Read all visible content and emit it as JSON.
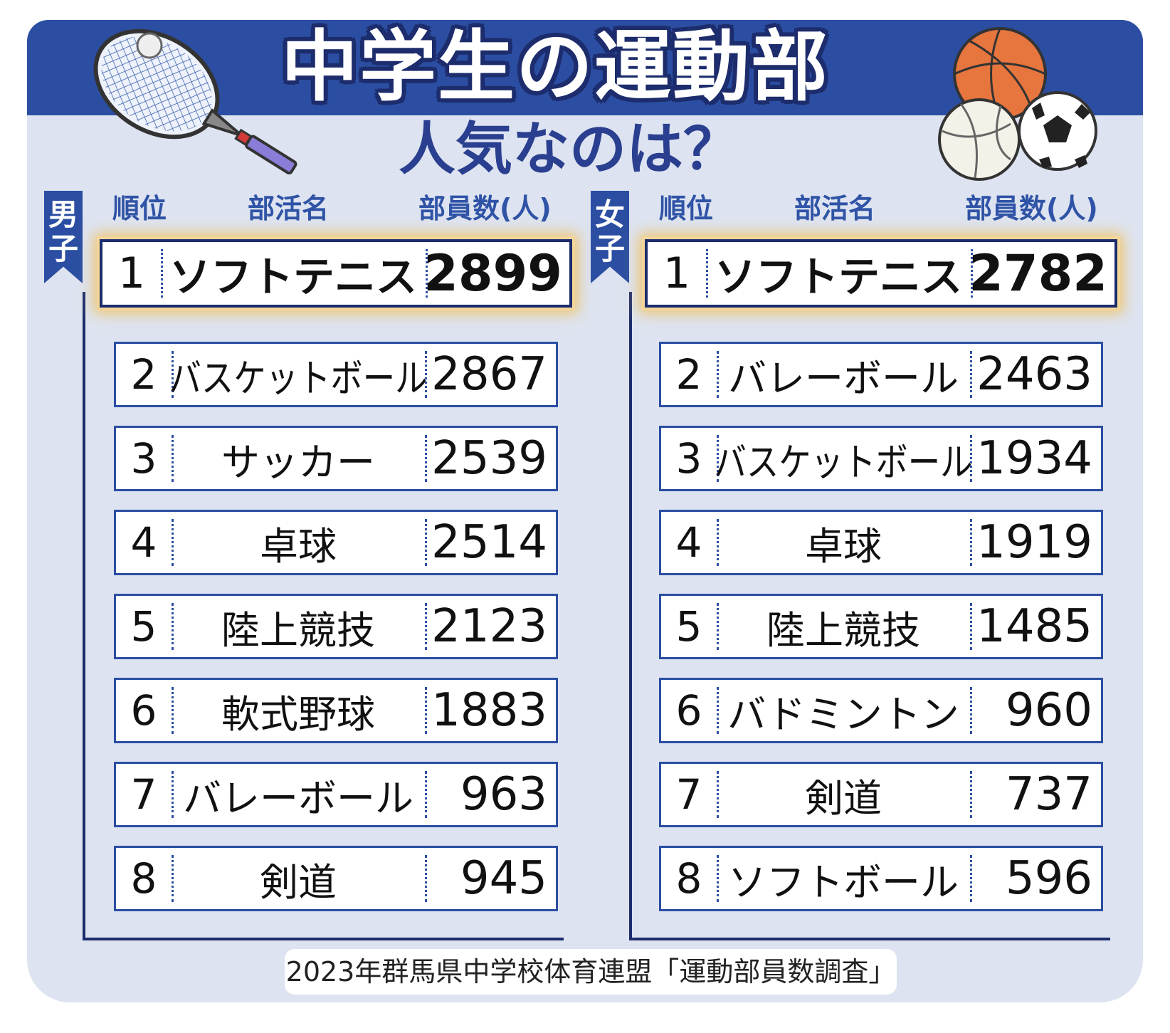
{
  "header": {
    "title": "中学生の運動部",
    "subtitle": "人気なのは？"
  },
  "columns": {
    "rank": "順位",
    "club": "部活名",
    "members": "部員数(人)"
  },
  "groups": {
    "male": "男子",
    "female": "女子"
  },
  "chart_data": [
    {
      "type": "table",
      "group": "男子",
      "columns": [
        "順位",
        "部活名",
        "部員数(人)"
      ],
      "rows": [
        {
          "rank": "1",
          "club": "ソフトテニス",
          "members": "2899"
        },
        {
          "rank": "2",
          "club": "バスケットボール",
          "members": "2867"
        },
        {
          "rank": "3",
          "club": "サッカー",
          "members": "2539"
        },
        {
          "rank": "4",
          "club": "卓球",
          "members": "2514"
        },
        {
          "rank": "5",
          "club": "陸上競技",
          "members": "2123"
        },
        {
          "rank": "6",
          "club": "軟式野球",
          "members": "1883"
        },
        {
          "rank": "7",
          "club": "バレーボール",
          "members": "963"
        },
        {
          "rank": "8",
          "club": "剣道",
          "members": "945"
        }
      ]
    },
    {
      "type": "table",
      "group": "女子",
      "columns": [
        "順位",
        "部活名",
        "部員数(人)"
      ],
      "rows": [
        {
          "rank": "1",
          "club": "ソフトテニス",
          "members": "2782"
        },
        {
          "rank": "2",
          "club": "バレーボール",
          "members": "2463"
        },
        {
          "rank": "3",
          "club": "バスケットボール",
          "members": "1934"
        },
        {
          "rank": "4",
          "club": "卓球",
          "members": "1919"
        },
        {
          "rank": "5",
          "club": "陸上競技",
          "members": "1485"
        },
        {
          "rank": "6",
          "club": "バドミントン",
          "members": "960"
        },
        {
          "rank": "7",
          "club": "剣道",
          "members": "737"
        },
        {
          "rank": "8",
          "club": "ソフトボール",
          "members": "596"
        }
      ]
    }
  ],
  "source": "2023年群馬県中学校体育連盟「運動部員数調査」",
  "icons": [
    "tennis-racket-icon",
    "basketball-icon",
    "volleyball-icon",
    "soccer-ball-icon"
  ],
  "colors": {
    "banner": "#2b4ea2",
    "panel": "#dde3f0",
    "highlight_glow": "#f0c46c",
    "header_text": "#2f53a6"
  }
}
